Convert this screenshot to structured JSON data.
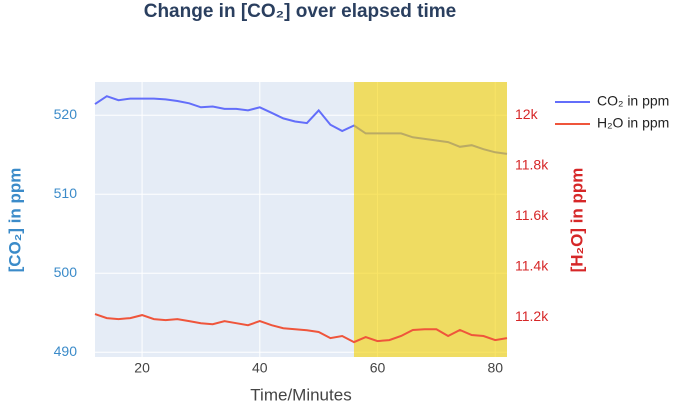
{
  "chart_data": {
    "type": "line",
    "title": "Change in  [CO₂]  over elapsed time",
    "x_label": "Time/Minutes",
    "y_label": "[CO₂] in ppm",
    "y2_label": "[H₂O] in ppm",
    "x": [
      12,
      14,
      16,
      18,
      20,
      22,
      24,
      26,
      28,
      30,
      32,
      34,
      36,
      38,
      40,
      42,
      44,
      46,
      48,
      50,
      52,
      54,
      56,
      58,
      60,
      62,
      64,
      66,
      68,
      70,
      72,
      74,
      76,
      78,
      80,
      82
    ],
    "series": [
      {
        "name": "CO₂ in ppm",
        "color": "#636efa",
        "values": [
          521.4,
          522.4,
          521.9,
          522.1,
          522.1,
          522.1,
          522,
          521.8,
          521.5,
          521,
          521.1,
          520.8,
          520.8,
          520.6,
          521,
          520.3,
          519.6,
          519.2,
          519,
          520.6,
          518.8,
          518,
          518.7,
          517.7,
          517.7,
          517.7,
          517.7,
          517.2,
          517,
          516.8,
          516.6,
          516,
          516.2,
          515.7,
          515.3,
          515.1
        ]
      },
      {
        "name": "H₂O in ppm",
        "color": "#ef553b",
        "axis": "y2",
        "values": [
          11212,
          11196,
          11192,
          11196,
          11208,
          11192,
          11188,
          11192,
          11184,
          11176,
          11172,
          11184,
          11176,
          11168,
          11184,
          11168,
          11156,
          11152,
          11148,
          11141,
          11117,
          11125,
          11101,
          11121,
          11105,
          11109,
          11125,
          11149,
          11152,
          11152,
          11125,
          11149,
          11129,
          11125,
          11109,
          11117
        ]
      }
    ],
    "xlim": [
      12,
      82
    ],
    "xticks": [
      20,
      40,
      60,
      80
    ],
    "ylim": [
      489.4,
      524.2
    ],
    "yticks": [
      490,
      500,
      510,
      520
    ],
    "y2lim": [
      11042,
      12131
    ],
    "y2ticks": [
      {
        "value": 11200,
        "label": "11.2k"
      },
      {
        "value": 11400,
        "label": "11.4k"
      },
      {
        "value": 11600,
        "label": "11.6k"
      },
      {
        "value": 11800,
        "label": "11.8k"
      },
      {
        "value": 12000,
        "label": "12k"
      }
    ],
    "y_color": "#3b8bc9",
    "y2_color": "#d62728",
    "grid": true,
    "legend": "right",
    "highlight": {
      "x0": 56,
      "x1": 82,
      "color": "#f5d200"
    }
  }
}
